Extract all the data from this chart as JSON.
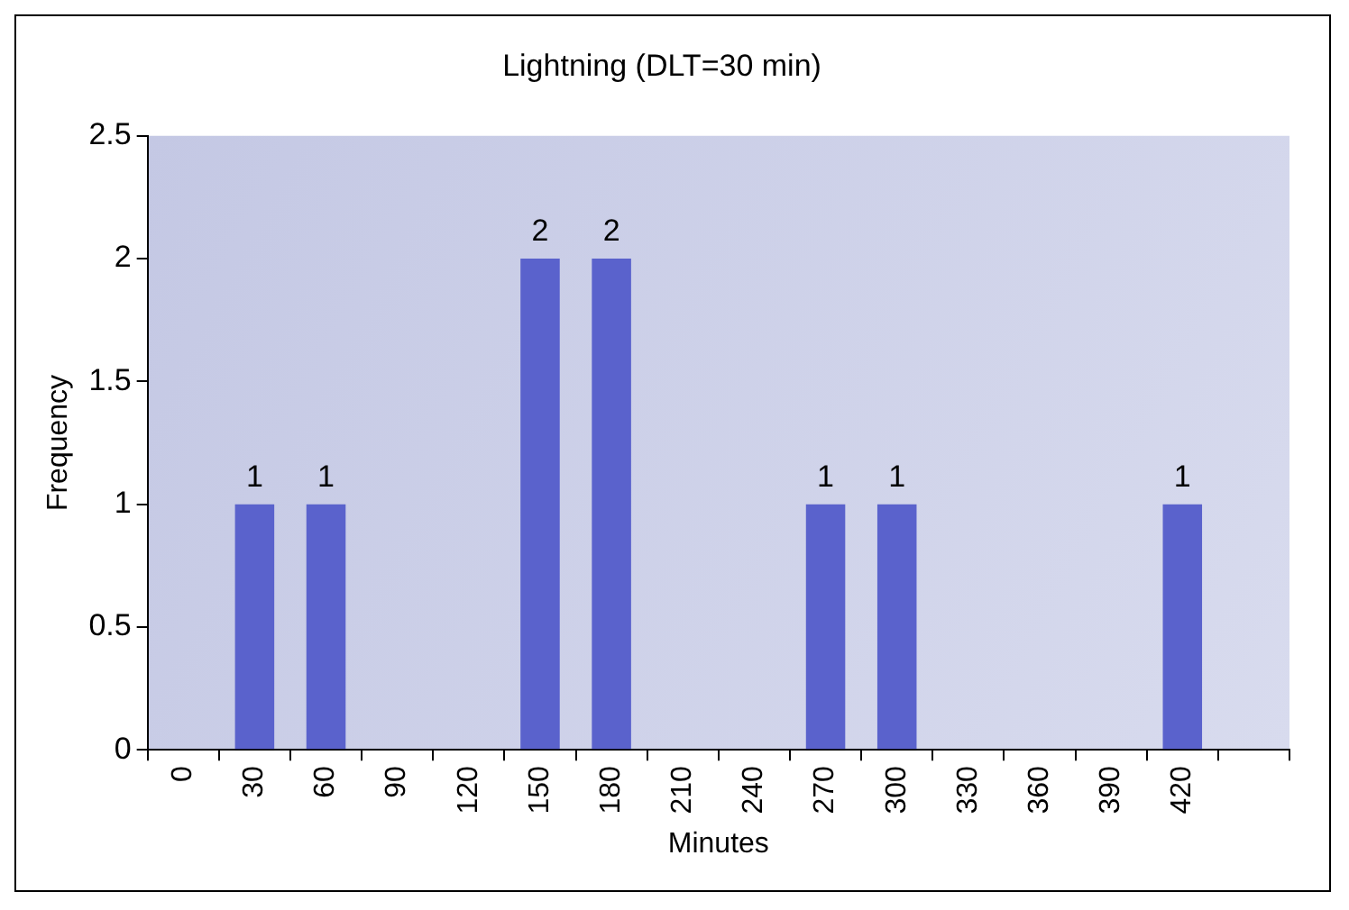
{
  "chart_data": {
    "type": "bar",
    "title": "Lightning (DLT=30 min)",
    "xlabel": "Minutes",
    "ylabel": "Frequency",
    "categories": [
      "0",
      "30",
      "60",
      "90",
      "120",
      "150",
      "180",
      "210",
      "240",
      "270",
      "300",
      "330",
      "360",
      "390",
      "420",
      null
    ],
    "values": [
      null,
      1,
      1,
      null,
      null,
      2,
      2,
      null,
      null,
      1,
      1,
      null,
      null,
      null,
      1,
      null
    ],
    "color": "#5a62cc",
    "ylim": [
      0,
      2.5
    ],
    "yticks": [
      0,
      0.5,
      1,
      1.5,
      2,
      2.5
    ],
    "grid": false,
    "legend": false,
    "data_labels": true
  }
}
